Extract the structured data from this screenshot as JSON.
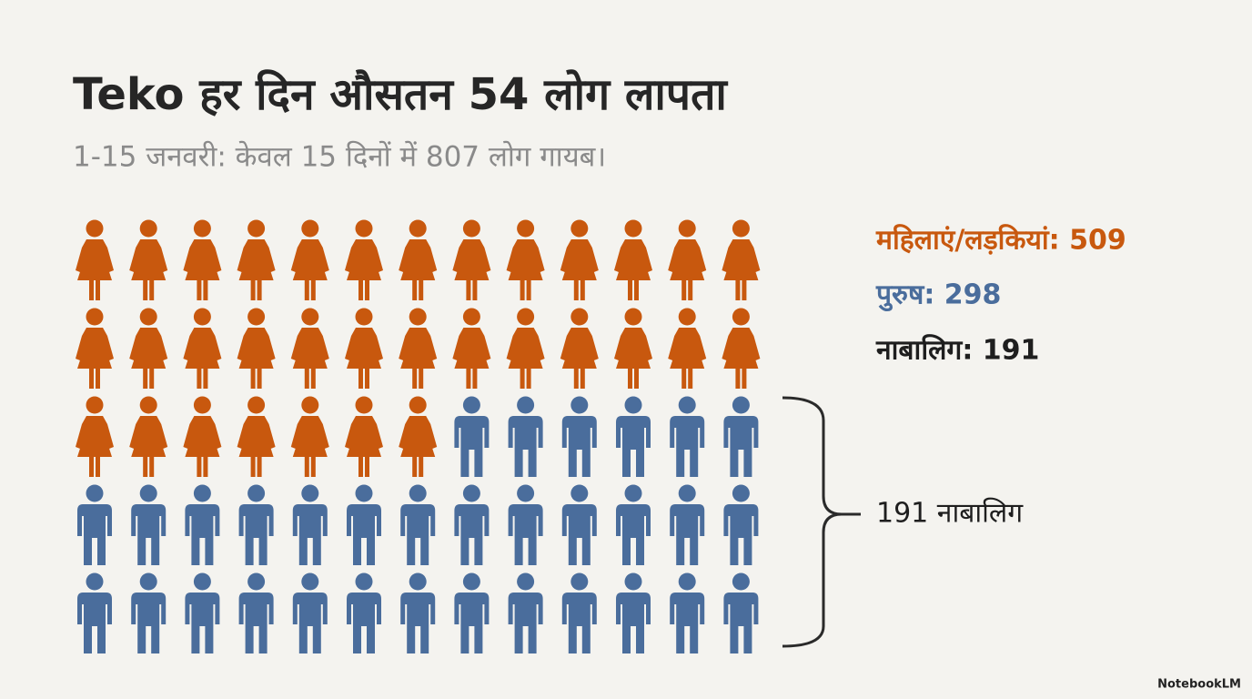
{
  "header": {
    "title": "Teko हर दिन औसतन 54 लोग लापता",
    "subtitle": "1-15 जनवरी: केवल 15 दिनों में 807 लोग गायब।"
  },
  "pictogram": {
    "columns": 13,
    "groups": [
      {
        "label": "महिलाएं/लड़कियां: 509",
        "color": "#c8580e",
        "icons": 33
      },
      {
        "label": "पुरुष: 298",
        "color": "#4a6d9c",
        "icons": 32
      }
    ]
  },
  "summary": "नाबालिग: 191",
  "bracket_label": "191 नाबालिग",
  "watermark": "NotebookLM"
}
